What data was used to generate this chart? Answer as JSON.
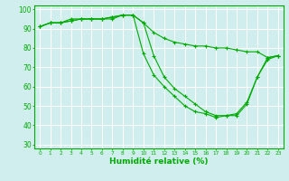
{
  "xlabel": "Humidité relative (%)",
  "background_color": "#d0eeee",
  "grid_color": "#ffffff",
  "line_color": "#00aa00",
  "xlim": [
    -0.5,
    23.5
  ],
  "ylim": [
    28,
    102
  ],
  "yticks": [
    30,
    40,
    50,
    60,
    70,
    80,
    90,
    100
  ],
  "xticks": [
    0,
    1,
    2,
    3,
    4,
    5,
    6,
    7,
    8,
    9,
    10,
    11,
    12,
    13,
    14,
    15,
    16,
    17,
    18,
    19,
    20,
    21,
    22,
    23
  ],
  "line1_x": [
    0,
    1,
    2,
    3,
    4,
    5,
    6,
    7,
    8,
    9,
    10,
    11,
    12,
    13,
    14,
    15,
    16,
    17,
    18,
    19,
    20,
    21,
    22,
    23
  ],
  "line1_y": [
    91,
    93,
    93,
    95,
    95,
    95,
    95,
    95,
    97,
    97,
    93,
    88,
    85,
    83,
    82,
    81,
    81,
    80,
    80,
    79,
    78,
    78,
    75,
    76
  ],
  "line2_x": [
    0,
    1,
    2,
    3,
    4,
    5,
    6,
    7,
    8,
    9,
    10,
    11,
    12,
    13,
    14,
    15,
    16,
    17,
    18,
    19,
    20,
    21,
    22,
    23
  ],
  "line2_y": [
    91,
    93,
    93,
    94,
    95,
    95,
    95,
    96,
    97,
    97,
    93,
    76,
    65,
    59,
    55,
    51,
    47,
    45,
    45,
    46,
    52,
    65,
    75,
    76
  ],
  "line3_x": [
    0,
    1,
    2,
    3,
    4,
    5,
    6,
    7,
    8,
    9,
    10,
    11,
    12,
    13,
    14,
    15,
    16,
    17,
    18,
    19,
    20,
    21,
    22,
    23
  ],
  "line3_y": [
    91,
    93,
    93,
    94,
    95,
    95,
    95,
    96,
    97,
    97,
    77,
    66,
    60,
    55,
    50,
    47,
    46,
    44,
    45,
    45,
    51,
    65,
    74,
    76
  ]
}
